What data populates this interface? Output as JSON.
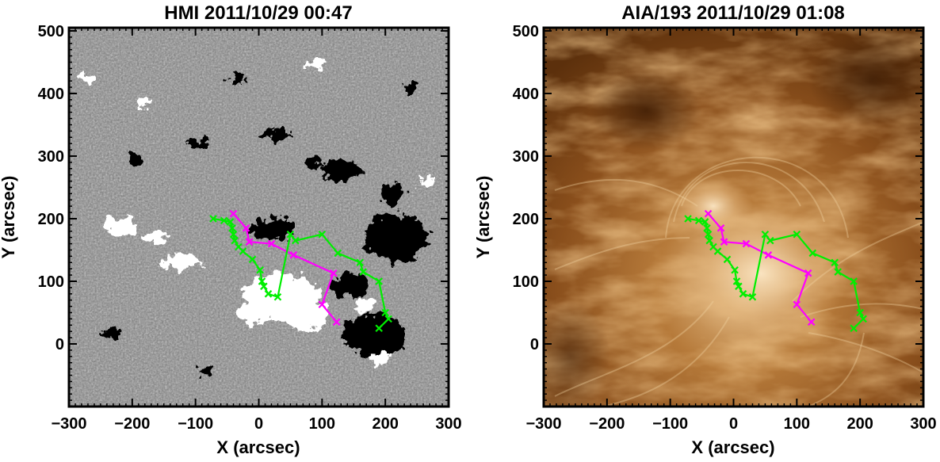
{
  "chart_data": [
    {
      "type": "scatter",
      "title": "HMI 2011/10/29 00:47",
      "xlabel": "X (arcsec)",
      "ylabel": "Y (arcsec)",
      "xlim": [
        -300,
        300
      ],
      "ylim": [
        -100,
        505
      ],
      "xticks": [
        -300,
        -200,
        -100,
        0,
        100,
        200,
        300
      ],
      "yticks": [
        0,
        100,
        200,
        300,
        400,
        500
      ],
      "xtick_labels": [
        "−300",
        "−200",
        "−100",
        "0",
        "100",
        "200",
        "300"
      ],
      "ytick_labels": [
        "0",
        "100",
        "200",
        "300",
        "400",
        "500"
      ],
      "background": "magnetogram-grayscale",
      "series": [
        {
          "color": "#ff00ff",
          "x": [
            -40,
            -20,
            -15,
            20,
            55,
            118,
            100,
            123
          ],
          "y": [
            208,
            185,
            163,
            160,
            142,
            113,
            63,
            35
          ]
        },
        {
          "color": "#00ee00",
          "x": [
            -72,
            -55,
            -45,
            -42,
            -40,
            -38,
            -32,
            -25,
            -10,
            2,
            5,
            8,
            15,
            30,
            50,
            58,
            100,
            125,
            160,
            165,
            190,
            200,
            205,
            190
          ],
          "y": [
            200,
            197,
            195,
            185,
            175,
            165,
            155,
            148,
            135,
            118,
            100,
            92,
            80,
            75,
            175,
            165,
            175,
            145,
            130,
            115,
            100,
            50,
            40,
            25
          ]
        }
      ]
    },
    {
      "type": "scatter",
      "title": "AIA/193 2011/10/29 01:08",
      "xlabel": "X (arcsec)",
      "ylabel": "Y (arcsec)",
      "xlim": [
        -300,
        300
      ],
      "ylim": [
        -100,
        505
      ],
      "xticks": [
        -300,
        -200,
        -100,
        0,
        100,
        200,
        300
      ],
      "yticks": [
        0,
        100,
        200,
        300,
        400,
        500
      ],
      "xtick_labels": [
        "−300",
        "−200",
        "−100",
        "0",
        "100",
        "200",
        "300"
      ],
      "ytick_labels": [
        "0",
        "100",
        "200",
        "300",
        "400",
        "500"
      ],
      "background": "euv-copper",
      "series": [
        {
          "color": "#ff00ff",
          "x": [
            -40,
            -20,
            -15,
            20,
            55,
            118,
            100,
            123
          ],
          "y": [
            208,
            185,
            163,
            160,
            142,
            113,
            63,
            35
          ]
        },
        {
          "color": "#00ee00",
          "x": [
            -72,
            -55,
            -45,
            -42,
            -40,
            -38,
            -32,
            -25,
            -10,
            2,
            5,
            8,
            15,
            30,
            50,
            58,
            100,
            125,
            160,
            165,
            190,
            200,
            205,
            190
          ],
          "y": [
            200,
            197,
            195,
            185,
            175,
            165,
            155,
            148,
            135,
            118,
            100,
            92,
            80,
            75,
            175,
            165,
            175,
            145,
            130,
            115,
            100,
            50,
            40,
            25
          ]
        }
      ]
    }
  ]
}
